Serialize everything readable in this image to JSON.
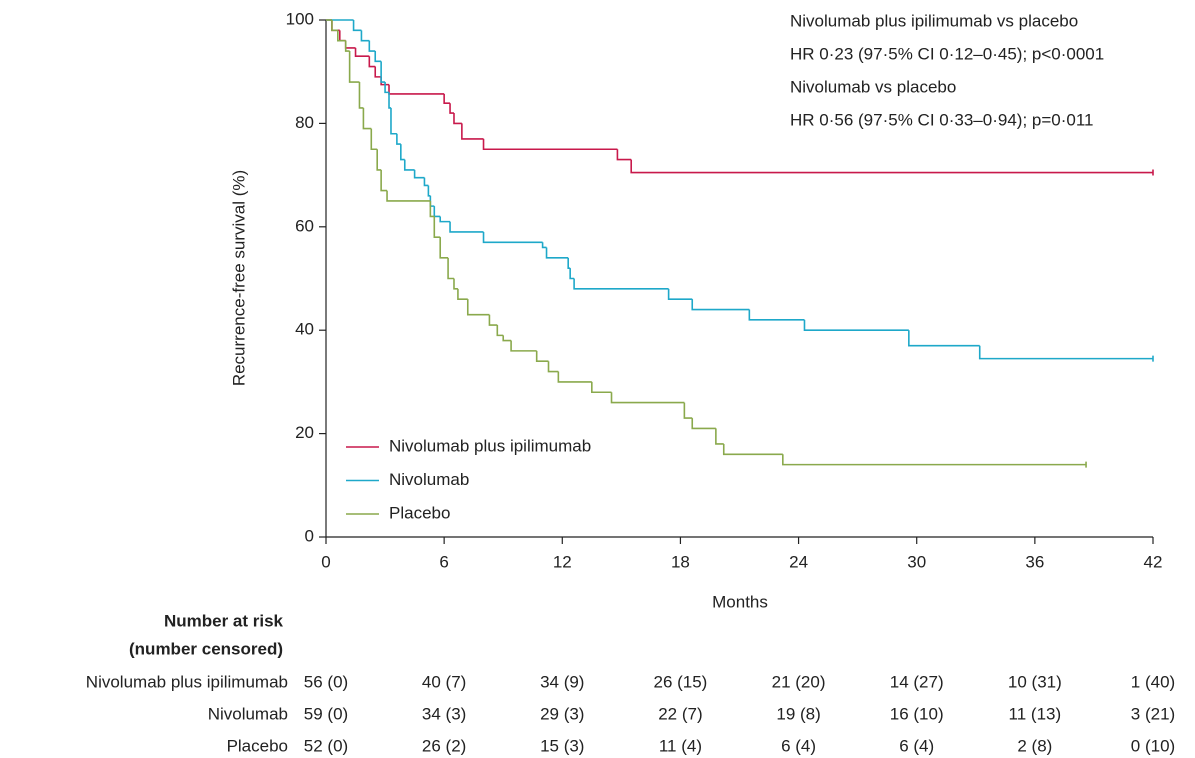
{
  "chart_data": {
    "type": "line",
    "step": true,
    "xlabel": "Months",
    "ylabel": "Recurrence-free survival (%)",
    "annotations": [
      "Nivolumab plus ipilimumab vs placebo",
      "HR 0·23 (97·5% CI 0·12–0·45); p<0·0001",
      "Nivolumab vs placebo",
      "HR 0·56 (97·5% CI 0·33–0·94); p=0·011"
    ],
    "xlim": [
      0,
      42
    ],
    "xticks": [
      0,
      6,
      12,
      18,
      24,
      30,
      36,
      42
    ],
    "ylim": [
      0,
      100
    ],
    "yticks": [
      0,
      20,
      40,
      60,
      80,
      100
    ],
    "legend": "lower left",
    "series": [
      {
        "name": "Nivolumab plus ipilimumab",
        "color": "#c8194b",
        "x": [
          0,
          0.3,
          0.7,
          1,
          1.5,
          2.2,
          2.5,
          2.8,
          3.2,
          6,
          6.3,
          6.5,
          6.9,
          8,
          14.8,
          15.5,
          42
        ],
        "values": [
          100,
          98,
          96,
          94.6,
          93,
          91,
          89,
          87.5,
          85.7,
          83.9,
          82,
          80,
          77,
          75,
          73,
          70.5,
          70.5
        ]
      },
      {
        "name": "Nivolumab",
        "color": "#1ea8c9",
        "x": [
          0,
          1.4,
          1.8,
          2.2,
          2.5,
          2.8,
          3,
          3.2,
          3.3,
          3.6,
          3.8,
          4,
          4.5,
          5,
          5.2,
          5.3,
          5.5,
          5.8,
          6.3,
          8,
          11,
          11.2,
          12.3,
          12.4,
          12.6,
          17.4,
          18.6,
          21.5,
          24.3,
          29.6,
          33.2,
          42
        ],
        "values": [
          100,
          98,
          96,
          94,
          92,
          88,
          86,
          83,
          78,
          76,
          73,
          71,
          69.5,
          68,
          66,
          64,
          62,
          61,
          59,
          57,
          56,
          54,
          52,
          50,
          48,
          46,
          44,
          42,
          40,
          37,
          34.5,
          34.5
        ]
      },
      {
        "name": "Placebo",
        "color": "#8aa94c",
        "x": [
          0,
          0.3,
          0.6,
          1,
          1.2,
          1.7,
          1.9,
          2.3,
          2.6,
          2.8,
          3.1,
          5.3,
          5.5,
          5.8,
          6.2,
          6.5,
          6.7,
          7.2,
          8.3,
          8.7,
          9,
          9.4,
          10.7,
          11.3,
          11.8,
          13.5,
          14.5,
          18.2,
          18.6,
          19.8,
          20.2,
          23.2,
          38.6
        ],
        "values": [
          100,
          98,
          96,
          94,
          88,
          83,
          79,
          75,
          71,
          67,
          65,
          62,
          58,
          54,
          50,
          48,
          46,
          43,
          41,
          39,
          38,
          36,
          34,
          32,
          30,
          28,
          26,
          23,
          21,
          18,
          16,
          14,
          14
        ]
      }
    ],
    "risk_table": {
      "title": "Number at risk",
      "subtitle": "(number censored)",
      "rows": [
        [
          "56 (0)",
          "40 (7)",
          "34 (9)",
          "26 (15)",
          "21 (20)",
          "14 (27)",
          "10 (31)",
          "1 (40)"
        ],
        [
          "59 (0)",
          "34 (3)",
          "29 (3)",
          "22 (7)",
          "19 (8)",
          "16 (10)",
          "11 (13)",
          "3 (21)"
        ],
        [
          "52 (0)",
          "26 (2)",
          "15 (3)",
          "11 (4)",
          "6 (4)",
          "6 (4)",
          "2 (8)",
          "0 (10)"
        ]
      ]
    }
  }
}
